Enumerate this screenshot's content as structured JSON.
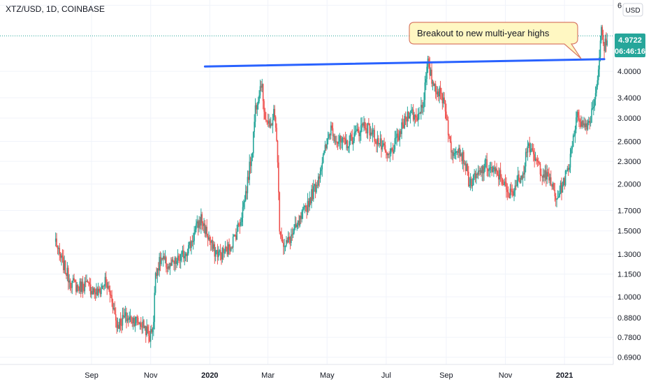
{
  "header": {
    "title": "XTZ/USD, 1D, COINBASE",
    "currency_button": "USD"
  },
  "price_badge": {
    "price": "4.9722",
    "countdown": "06:46:16",
    "color": "#26a69a"
  },
  "colors": {
    "up": "#26a69a",
    "down": "#ef5350",
    "trendline": "#2962ff",
    "callout_fill": "#fff7c2",
    "callout_stroke": "#d97b66",
    "last_price_line": "#26a69a"
  },
  "callout": {
    "text": "Breakout to new multi-year highs"
  },
  "chart_data": {
    "type": "candlestick",
    "title": "XTZ/USD, 1D, COINBASE",
    "y_scale": "log",
    "ylim": [
      0.66,
      6.2
    ],
    "y_ticks": [
      {
        "value": 6,
        "label": "6"
      },
      {
        "value": 4.0,
        "label": "4.0000"
      },
      {
        "value": 3.4,
        "label": "3.4000"
      },
      {
        "value": 3.0,
        "label": "3.0000"
      },
      {
        "value": 2.6,
        "label": "2.6000"
      },
      {
        "value": 2.3,
        "label": "2.3000"
      },
      {
        "value": 2.0,
        "label": "2.0000"
      },
      {
        "value": 1.7,
        "label": "1.7000"
      },
      {
        "value": 1.5,
        "label": "1.5000"
      },
      {
        "value": 1.3,
        "label": "1.3000"
      },
      {
        "value": 1.15,
        "label": "1.1500"
      },
      {
        "value": 1.0,
        "label": "1.0000"
      },
      {
        "value": 0.88,
        "label": "0.8800"
      },
      {
        "value": 0.78,
        "label": "0.7800"
      },
      {
        "value": 0.69,
        "label": "0.6900"
      }
    ],
    "xlim": [
      "2019-07-19",
      "2021-02-16"
    ],
    "x_ticks": [
      {
        "date": "2019-09-01",
        "label": "Sep",
        "bold": false
      },
      {
        "date": "2019-11-01",
        "label": "Nov",
        "bold": false
      },
      {
        "date": "2020-01-01",
        "label": "2020",
        "bold": true
      },
      {
        "date": "2020-03-01",
        "label": "Mar",
        "bold": false
      },
      {
        "date": "2020-05-01",
        "label": "May",
        "bold": false
      },
      {
        "date": "2020-07-01",
        "label": "Jul",
        "bold": false
      },
      {
        "date": "2020-09-01",
        "label": "Sep",
        "bold": false
      },
      {
        "date": "2020-11-01",
        "label": "Nov",
        "bold": false
      },
      {
        "date": "2021-01-01",
        "label": "2021",
        "bold": true
      }
    ],
    "last_price": 4.9722,
    "trendline": {
      "start": {
        "date": "2019-12-27",
        "value": 4.12
      },
      "end": {
        "date": "2021-02-11",
        "value": 4.31
      }
    },
    "waypoints": [
      [
        "2019-07-26",
        1.42
      ],
      [
        "2019-07-29",
        1.3
      ],
      [
        "2019-08-03",
        1.22
      ],
      [
        "2019-08-10",
        1.1
      ],
      [
        "2019-08-18",
        1.06
      ],
      [
        "2019-08-25",
        1.08
      ],
      [
        "2019-09-01",
        1.05
      ],
      [
        "2019-09-08",
        1.02
      ],
      [
        "2019-09-15",
        1.1
      ],
      [
        "2019-09-22",
        0.99
      ],
      [
        "2019-09-27",
        0.84
      ],
      [
        "2019-10-05",
        0.88
      ],
      [
        "2019-10-15",
        0.87
      ],
      [
        "2019-10-25",
        0.84
      ],
      [
        "2019-10-31",
        0.78
      ],
      [
        "2019-11-04",
        0.86
      ],
      [
        "2019-11-06",
        1.17
      ],
      [
        "2019-11-12",
        1.26
      ],
      [
        "2019-11-20",
        1.2
      ],
      [
        "2019-11-28",
        1.24
      ],
      [
        "2019-12-05",
        1.3
      ],
      [
        "2019-12-12",
        1.38
      ],
      [
        "2019-12-18",
        1.52
      ],
      [
        "2019-12-23",
        1.62
      ],
      [
        "2019-12-30",
        1.45
      ],
      [
        "2020-01-05",
        1.33
      ],
      [
        "2020-01-12",
        1.3
      ],
      [
        "2020-01-20",
        1.34
      ],
      [
        "2020-01-27",
        1.45
      ],
      [
        "2020-02-02",
        1.62
      ],
      [
        "2020-02-08",
        1.95
      ],
      [
        "2020-02-14",
        2.5
      ],
      [
        "2020-02-17",
        3.2
      ],
      [
        "2020-02-23",
        3.75
      ],
      [
        "2020-02-27",
        3.05
      ],
      [
        "2020-03-03",
        2.8
      ],
      [
        "2020-03-07",
        3.1
      ],
      [
        "2020-03-10",
        2.7
      ],
      [
        "2020-03-13",
        1.55
      ],
      [
        "2020-03-18",
        1.35
      ],
      [
        "2020-03-25",
        1.45
      ],
      [
        "2020-04-01",
        1.55
      ],
      [
        "2020-04-10",
        1.75
      ],
      [
        "2020-04-20",
        2.0
      ],
      [
        "2020-04-28",
        2.4
      ],
      [
        "2020-05-05",
        2.85
      ],
      [
        "2020-05-12",
        2.6
      ],
      [
        "2020-05-20",
        2.55
      ],
      [
        "2020-05-30",
        2.7
      ],
      [
        "2020-06-08",
        2.9
      ],
      [
        "2020-06-16",
        2.75
      ],
      [
        "2020-06-25",
        2.55
      ],
      [
        "2020-07-03",
        2.35
      ],
      [
        "2020-07-10",
        2.55
      ],
      [
        "2020-07-18",
        2.85
      ],
      [
        "2020-07-25",
        3.15
      ],
      [
        "2020-08-01",
        3.0
      ],
      [
        "2020-08-08",
        3.3
      ],
      [
        "2020-08-13",
        4.2
      ],
      [
        "2020-08-17",
        3.8
      ],
      [
        "2020-08-23",
        3.55
      ],
      [
        "2020-08-30",
        3.35
      ],
      [
        "2020-09-03",
        2.8
      ],
      [
        "2020-09-06",
        2.4
      ],
      [
        "2020-09-12",
        2.55
      ],
      [
        "2020-09-20",
        2.3
      ],
      [
        "2020-09-25",
        2.0
      ],
      [
        "2020-10-03",
        2.1
      ],
      [
        "2020-10-12",
        2.25
      ],
      [
        "2020-10-20",
        2.15
      ],
      [
        "2020-10-28",
        2.1
      ],
      [
        "2020-11-04",
        1.85
      ],
      [
        "2020-11-12",
        2.0
      ],
      [
        "2020-11-20",
        2.2
      ],
      [
        "2020-11-24",
        2.6
      ],
      [
        "2020-11-28",
        2.4
      ],
      [
        "2020-12-05",
        2.25
      ],
      [
        "2020-12-12",
        2.1
      ],
      [
        "2020-12-18",
        2.05
      ],
      [
        "2020-12-23",
        1.8
      ],
      [
        "2020-12-30",
        2.0
      ],
      [
        "2021-01-05",
        2.2
      ],
      [
        "2021-01-10",
        2.7
      ],
      [
        "2021-01-15",
        3.1
      ],
      [
        "2021-01-20",
        2.85
      ],
      [
        "2021-01-27",
        2.95
      ],
      [
        "2021-02-02",
        3.5
      ],
      [
        "2021-02-05",
        4.1
      ],
      [
        "2021-02-08",
        5.1
      ],
      [
        "2021-02-11",
        4.6
      ],
      [
        "2021-02-14",
        4.97
      ]
    ]
  }
}
